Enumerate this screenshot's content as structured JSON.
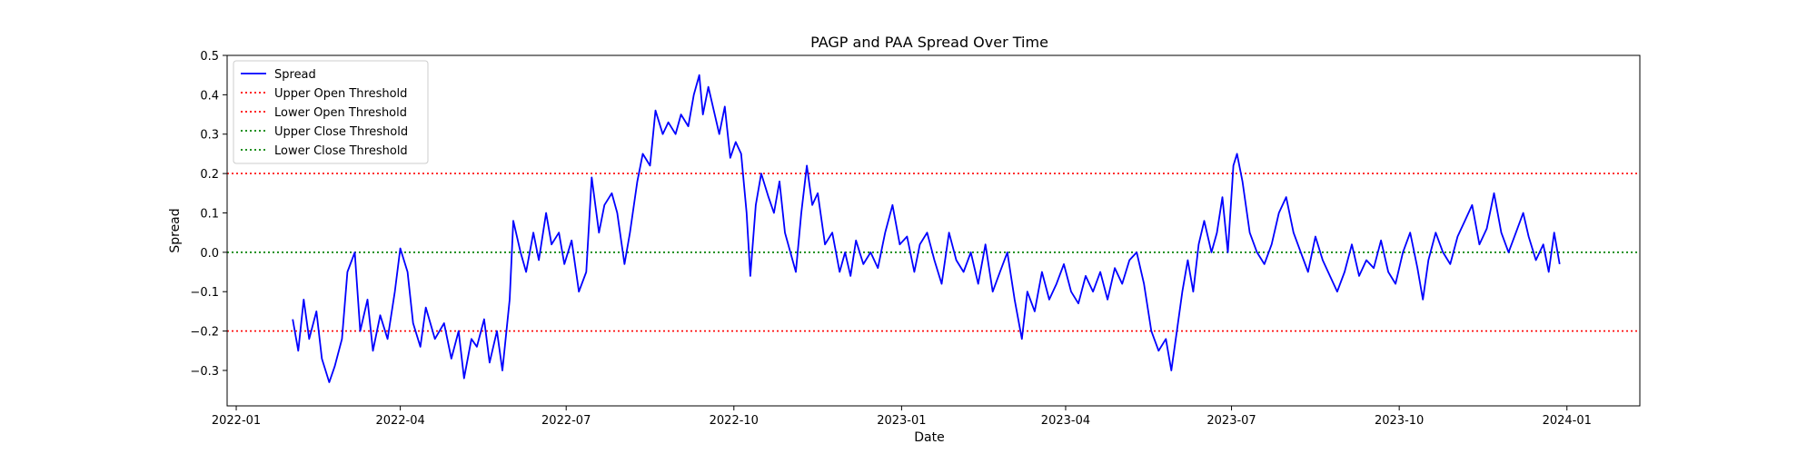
{
  "chart_data": {
    "type": "line",
    "title": "PAGP and PAA Spread Over Time",
    "xlabel": "Date",
    "ylabel": "Spread",
    "xlim": [
      "2021-12-27",
      "2024-02-10"
    ],
    "ylim": [
      -0.39,
      0.5
    ],
    "xticks": [
      {
        "date": "2022-01-01",
        "label": "2022-01"
      },
      {
        "date": "2022-04-01",
        "label": "2022-04"
      },
      {
        "date": "2022-07-01",
        "label": "2022-07"
      },
      {
        "date": "2022-10-01",
        "label": "2022-10"
      },
      {
        "date": "2023-01-01",
        "label": "2023-01"
      },
      {
        "date": "2023-04-01",
        "label": "2023-04"
      },
      {
        "date": "2023-07-01",
        "label": "2023-07"
      },
      {
        "date": "2023-10-01",
        "label": "2023-10"
      },
      {
        "date": "2024-01-01",
        "label": "2024-01"
      }
    ],
    "yticks": [
      {
        "value": 0.5,
        "label": "0.5"
      },
      {
        "value": 0.4,
        "label": "0.4"
      },
      {
        "value": 0.3,
        "label": "0.3"
      },
      {
        "value": 0.2,
        "label": "0.2"
      },
      {
        "value": 0.1,
        "label": "0.1"
      },
      {
        "value": 0.0,
        "label": "0.0"
      },
      {
        "value": -0.1,
        "label": "−0.1"
      },
      {
        "value": -0.2,
        "label": "−0.2"
      },
      {
        "value": -0.3,
        "label": "−0.3"
      }
    ],
    "grid": false,
    "legend_position": "upper-left",
    "series": [
      {
        "name": "Spread",
        "color": "#0000ff",
        "style": "solid",
        "points": [
          [
            "2022-02-01",
            -0.17
          ],
          [
            "2022-02-04",
            -0.25
          ],
          [
            "2022-02-07",
            -0.12
          ],
          [
            "2022-02-10",
            -0.22
          ],
          [
            "2022-02-14",
            -0.15
          ],
          [
            "2022-02-17",
            -0.27
          ],
          [
            "2022-02-21",
            -0.33
          ],
          [
            "2022-02-24",
            -0.29
          ],
          [
            "2022-02-28",
            -0.22
          ],
          [
            "2022-03-03",
            -0.05
          ],
          [
            "2022-03-07",
            0.0
          ],
          [
            "2022-03-10",
            -0.2
          ],
          [
            "2022-03-14",
            -0.12
          ],
          [
            "2022-03-17",
            -0.25
          ],
          [
            "2022-03-21",
            -0.16
          ],
          [
            "2022-03-25",
            -0.22
          ],
          [
            "2022-03-29",
            -0.1
          ],
          [
            "2022-04-01",
            0.01
          ],
          [
            "2022-04-05",
            -0.05
          ],
          [
            "2022-04-08",
            -0.18
          ],
          [
            "2022-04-12",
            -0.24
          ],
          [
            "2022-04-15",
            -0.14
          ],
          [
            "2022-04-20",
            -0.22
          ],
          [
            "2022-04-25",
            -0.18
          ],
          [
            "2022-04-29",
            -0.27
          ],
          [
            "2022-05-03",
            -0.2
          ],
          [
            "2022-05-06",
            -0.32
          ],
          [
            "2022-05-10",
            -0.22
          ],
          [
            "2022-05-13",
            -0.24
          ],
          [
            "2022-05-17",
            -0.17
          ],
          [
            "2022-05-20",
            -0.28
          ],
          [
            "2022-05-24",
            -0.2
          ],
          [
            "2022-05-27",
            -0.3
          ],
          [
            "2022-05-31",
            -0.12
          ],
          [
            "2022-06-02",
            0.08
          ],
          [
            "2022-06-06",
            0.0
          ],
          [
            "2022-06-09",
            -0.05
          ],
          [
            "2022-06-13",
            0.05
          ],
          [
            "2022-06-16",
            -0.02
          ],
          [
            "2022-06-20",
            0.1
          ],
          [
            "2022-06-23",
            0.02
          ],
          [
            "2022-06-27",
            0.05
          ],
          [
            "2022-06-30",
            -0.03
          ],
          [
            "2022-07-04",
            0.03
          ],
          [
            "2022-07-08",
            -0.1
          ],
          [
            "2022-07-12",
            -0.05
          ],
          [
            "2022-07-15",
            0.19
          ],
          [
            "2022-07-19",
            0.05
          ],
          [
            "2022-07-22",
            0.12
          ],
          [
            "2022-07-26",
            0.15
          ],
          [
            "2022-07-29",
            0.1
          ],
          [
            "2022-08-02",
            -0.03
          ],
          [
            "2022-08-05",
            0.05
          ],
          [
            "2022-08-09",
            0.18
          ],
          [
            "2022-08-12",
            0.25
          ],
          [
            "2022-08-16",
            0.22
          ],
          [
            "2022-08-19",
            0.36
          ],
          [
            "2022-08-23",
            0.3
          ],
          [
            "2022-08-26",
            0.33
          ],
          [
            "2022-08-30",
            0.3
          ],
          [
            "2022-09-02",
            0.35
          ],
          [
            "2022-09-06",
            0.32
          ],
          [
            "2022-09-09",
            0.4
          ],
          [
            "2022-09-12",
            0.45
          ],
          [
            "2022-09-14",
            0.35
          ],
          [
            "2022-09-17",
            0.42
          ],
          [
            "2022-09-20",
            0.36
          ],
          [
            "2022-09-23",
            0.3
          ],
          [
            "2022-09-26",
            0.37
          ],
          [
            "2022-09-29",
            0.24
          ],
          [
            "2022-10-02",
            0.28
          ],
          [
            "2022-10-05",
            0.25
          ],
          [
            "2022-10-08",
            0.1
          ],
          [
            "2022-10-10",
            -0.06
          ],
          [
            "2022-10-13",
            0.12
          ],
          [
            "2022-10-16",
            0.2
          ],
          [
            "2022-10-20",
            0.14
          ],
          [
            "2022-10-23",
            0.1
          ],
          [
            "2022-10-26",
            0.18
          ],
          [
            "2022-10-29",
            0.05
          ],
          [
            "2022-11-01",
            0.0
          ],
          [
            "2022-11-04",
            -0.05
          ],
          [
            "2022-11-07",
            0.1
          ],
          [
            "2022-11-10",
            0.22
          ],
          [
            "2022-11-13",
            0.12
          ],
          [
            "2022-11-16",
            0.15
          ],
          [
            "2022-11-20",
            0.02
          ],
          [
            "2022-11-24",
            0.05
          ],
          [
            "2022-11-28",
            -0.05
          ],
          [
            "2022-12-01",
            0.0
          ],
          [
            "2022-12-04",
            -0.06
          ],
          [
            "2022-12-07",
            0.03
          ],
          [
            "2022-12-11",
            -0.03
          ],
          [
            "2022-12-15",
            0.0
          ],
          [
            "2022-12-19",
            -0.04
          ],
          [
            "2022-12-23",
            0.05
          ],
          [
            "2022-12-27",
            0.12
          ],
          [
            "2022-12-31",
            0.02
          ],
          [
            "2023-01-04",
            0.04
          ],
          [
            "2023-01-08",
            -0.05
          ],
          [
            "2023-01-11",
            0.02
          ],
          [
            "2023-01-15",
            0.05
          ],
          [
            "2023-01-19",
            -0.02
          ],
          [
            "2023-01-23",
            -0.08
          ],
          [
            "2023-01-27",
            0.05
          ],
          [
            "2023-01-31",
            -0.02
          ],
          [
            "2023-02-04",
            -0.05
          ],
          [
            "2023-02-08",
            0.0
          ],
          [
            "2023-02-12",
            -0.08
          ],
          [
            "2023-02-16",
            0.02
          ],
          [
            "2023-02-20",
            -0.1
          ],
          [
            "2023-02-24",
            -0.05
          ],
          [
            "2023-02-28",
            0.0
          ],
          [
            "2023-03-04",
            -0.12
          ],
          [
            "2023-03-08",
            -0.22
          ],
          [
            "2023-03-11",
            -0.1
          ],
          [
            "2023-03-15",
            -0.15
          ],
          [
            "2023-03-19",
            -0.05
          ],
          [
            "2023-03-23",
            -0.12
          ],
          [
            "2023-03-27",
            -0.08
          ],
          [
            "2023-03-31",
            -0.03
          ],
          [
            "2023-04-04",
            -0.1
          ],
          [
            "2023-04-08",
            -0.13
          ],
          [
            "2023-04-12",
            -0.06
          ],
          [
            "2023-04-16",
            -0.1
          ],
          [
            "2023-04-20",
            -0.05
          ],
          [
            "2023-04-24",
            -0.12
          ],
          [
            "2023-04-28",
            -0.04
          ],
          [
            "2023-05-02",
            -0.08
          ],
          [
            "2023-05-06",
            -0.02
          ],
          [
            "2023-05-10",
            0.0
          ],
          [
            "2023-05-14",
            -0.08
          ],
          [
            "2023-05-18",
            -0.2
          ],
          [
            "2023-05-22",
            -0.25
          ],
          [
            "2023-05-26",
            -0.22
          ],
          [
            "2023-05-29",
            -0.3
          ],
          [
            "2023-06-01",
            -0.2
          ],
          [
            "2023-06-04",
            -0.1
          ],
          [
            "2023-06-07",
            -0.02
          ],
          [
            "2023-06-10",
            -0.1
          ],
          [
            "2023-06-13",
            0.02
          ],
          [
            "2023-06-16",
            0.08
          ],
          [
            "2023-06-20",
            0.0
          ],
          [
            "2023-06-23",
            0.05
          ],
          [
            "2023-06-26",
            0.14
          ],
          [
            "2023-06-29",
            0.0
          ],
          [
            "2023-07-02",
            0.22
          ],
          [
            "2023-07-04",
            0.25
          ],
          [
            "2023-07-07",
            0.18
          ],
          [
            "2023-07-11",
            0.05
          ],
          [
            "2023-07-15",
            0.0
          ],
          [
            "2023-07-19",
            -0.03
          ],
          [
            "2023-07-23",
            0.02
          ],
          [
            "2023-07-27",
            0.1
          ],
          [
            "2023-07-31",
            0.14
          ],
          [
            "2023-08-04",
            0.05
          ],
          [
            "2023-08-08",
            0.0
          ],
          [
            "2023-08-12",
            -0.05
          ],
          [
            "2023-08-16",
            0.04
          ],
          [
            "2023-08-20",
            -0.02
          ],
          [
            "2023-08-24",
            -0.06
          ],
          [
            "2023-08-28",
            -0.1
          ],
          [
            "2023-09-01",
            -0.05
          ],
          [
            "2023-09-05",
            0.02
          ],
          [
            "2023-09-09",
            -0.06
          ],
          [
            "2023-09-13",
            -0.02
          ],
          [
            "2023-09-17",
            -0.04
          ],
          [
            "2023-09-21",
            0.03
          ],
          [
            "2023-09-25",
            -0.05
          ],
          [
            "2023-09-29",
            -0.08
          ],
          [
            "2023-10-03",
            0.0
          ],
          [
            "2023-10-07",
            0.05
          ],
          [
            "2023-10-11",
            -0.04
          ],
          [
            "2023-10-14",
            -0.12
          ],
          [
            "2023-10-17",
            -0.02
          ],
          [
            "2023-10-21",
            0.05
          ],
          [
            "2023-10-25",
            0.0
          ],
          [
            "2023-10-29",
            -0.03
          ],
          [
            "2023-11-02",
            0.04
          ],
          [
            "2023-11-06",
            0.08
          ],
          [
            "2023-11-10",
            0.12
          ],
          [
            "2023-11-14",
            0.02
          ],
          [
            "2023-11-18",
            0.06
          ],
          [
            "2023-11-22",
            0.15
          ],
          [
            "2023-11-26",
            0.05
          ],
          [
            "2023-11-30",
            0.0
          ],
          [
            "2023-12-04",
            0.05
          ],
          [
            "2023-12-08",
            0.1
          ],
          [
            "2023-12-11",
            0.04
          ],
          [
            "2023-12-15",
            -0.02
          ],
          [
            "2023-12-19",
            0.02
          ],
          [
            "2023-12-22",
            -0.05
          ],
          [
            "2023-12-25",
            0.05
          ],
          [
            "2023-12-28",
            -0.03
          ]
        ]
      }
    ],
    "thresholds": [
      {
        "name": "Upper Open Threshold",
        "value": 0.2,
        "color": "#ff0000",
        "style": "dotted"
      },
      {
        "name": "Lower Open Threshold",
        "value": -0.2,
        "color": "#ff0000",
        "style": "dotted"
      },
      {
        "name": "Upper Close Threshold",
        "value": 0.0,
        "color": "#008000",
        "style": "dotted"
      },
      {
        "name": "Lower Close Threshold",
        "value": 0.0,
        "color": "#008000",
        "style": "dotted"
      }
    ]
  }
}
